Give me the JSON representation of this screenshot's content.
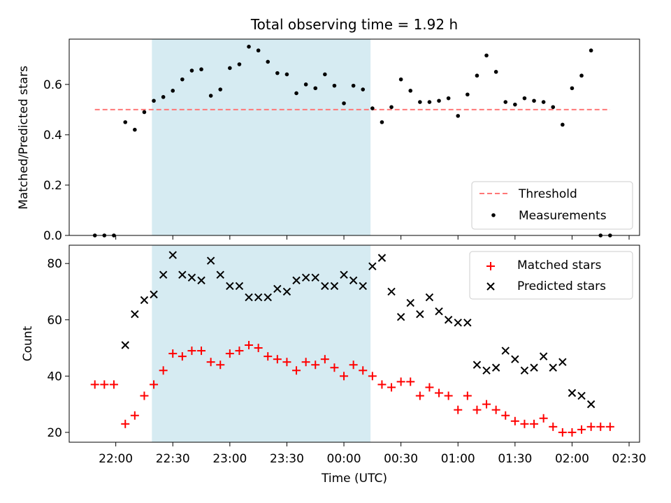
{
  "figure": {
    "title": "Total observing time = 1.92 h",
    "xlabel": "Time (UTC)",
    "xticks": [
      {
        "t": 0,
        "label": "22:00"
      },
      {
        "t": 30,
        "label": "22:30"
      },
      {
        "t": 60,
        "label": "23:00"
      },
      {
        "t": 90,
        "label": "23:30"
      },
      {
        "t": 120,
        "label": "00:00"
      },
      {
        "t": 150,
        "label": "00:30"
      },
      {
        "t": 180,
        "label": "01:00"
      },
      {
        "t": 210,
        "label": "01:30"
      },
      {
        "t": 240,
        "label": "02:00"
      },
      {
        "t": 270,
        "label": "02:30"
      }
    ],
    "xlim_minutes_after_2200": [
      -24.5,
      275.5
    ],
    "observing_window_minutes_after_2200": [
      19,
      134
    ],
    "colors": {
      "window": "#add8e6",
      "threshold": "#ff7777",
      "matched": "#ff0000",
      "predicted": "#000000",
      "measurement": "#000000"
    }
  },
  "chart_data": [
    {
      "type": "scatter",
      "ylabel": "Matched/Predicted stars",
      "ylim": [
        0,
        0.78
      ],
      "yticks": [
        0.0,
        0.2,
        0.4,
        0.6
      ],
      "ytick_labels": [
        "0.0",
        "0.2",
        "0.4",
        "0.6"
      ],
      "threshold": {
        "name": "Threshold",
        "value": 0.5,
        "x_range": [
          -11,
          260
        ]
      },
      "legend": {
        "location": "lower-right",
        "entries": [
          "Threshold",
          "Measurements"
        ]
      },
      "series": [
        {
          "name": "Measurements",
          "x": [
            -11,
            -6,
            -1,
            5,
            10,
            15,
            20,
            25,
            30,
            35,
            40,
            45,
            50,
            55,
            60,
            65,
            70,
            75,
            80,
            85,
            90,
            95,
            100,
            105,
            110,
            115,
            120,
            125,
            130,
            135,
            140,
            145,
            150,
            155,
            160,
            165,
            170,
            175,
            180,
            185,
            190,
            195,
            200,
            205,
            210,
            215,
            220,
            225,
            230,
            235,
            240,
            245,
            250,
            255,
            260
          ],
          "y": [
            0.0,
            0.0,
            0.0,
            0.45,
            0.42,
            0.49,
            0.535,
            0.55,
            0.575,
            0.62,
            0.655,
            0.66,
            0.555,
            0.58,
            0.665,
            0.68,
            0.75,
            0.735,
            0.69,
            0.645,
            0.64,
            0.565,
            0.6,
            0.585,
            0.64,
            0.595,
            0.525,
            0.595,
            0.58,
            0.505,
            0.45,
            0.51,
            0.62,
            0.575,
            0.53,
            0.53,
            0.535,
            0.545,
            0.475,
            0.56,
            0.635,
            0.715,
            0.65,
            0.53,
            0.52,
            0.545,
            0.535,
            0.53,
            0.51,
            0.44,
            0.585,
            0.635,
            0.735,
            0.0,
            0.0
          ]
        }
      ]
    },
    {
      "type": "scatter",
      "ylabel": "Count",
      "ylim": [
        16.5,
        86.5
      ],
      "yticks": [
        20,
        40,
        60,
        80
      ],
      "ytick_labels": [
        "20",
        "40",
        "60",
        "80"
      ],
      "legend": {
        "location": "top-right",
        "entries": [
          "Matched stars",
          "Predicted stars"
        ]
      },
      "series": [
        {
          "name": "Matched stars",
          "marker": "plus",
          "x": [
            -11,
            -6,
            -1,
            5,
            10,
            15,
            20,
            25,
            30,
            35,
            40,
            45,
            50,
            55,
            60,
            65,
            70,
            75,
            80,
            85,
            90,
            95,
            100,
            105,
            110,
            115,
            120,
            125,
            130,
            135,
            140,
            145,
            150,
            155,
            160,
            165,
            170,
            175,
            180,
            185,
            190,
            195,
            200,
            205,
            210,
            215,
            220,
            225,
            230,
            235,
            240,
            245,
            250,
            255,
            260
          ],
          "y": [
            37,
            37,
            37,
            23,
            26,
            33,
            37,
            42,
            48,
            47,
            49,
            49,
            45,
            44,
            48,
            49,
            51,
            50,
            47,
            46,
            45,
            42,
            45,
            44,
            46,
            43,
            40,
            44,
            42,
            40,
            37,
            36,
            38,
            38,
            33,
            36,
            34,
            33,
            28,
            33,
            28,
            30,
            28,
            26,
            24,
            23,
            23,
            25,
            22,
            20,
            20,
            21,
            22,
            22,
            22
          ]
        },
        {
          "name": "Predicted stars",
          "marker": "x",
          "x": [
            5,
            10,
            15,
            20,
            25,
            30,
            35,
            40,
            45,
            50,
            55,
            60,
            65,
            70,
            75,
            80,
            85,
            90,
            95,
            100,
            105,
            110,
            115,
            120,
            125,
            130,
            135,
            140,
            145,
            150,
            155,
            160,
            165,
            170,
            175,
            180,
            185,
            190,
            195,
            200,
            205,
            210,
            215,
            220,
            225,
            230,
            235,
            240,
            245,
            250
          ],
          "y": [
            51,
            62,
            67,
            69,
            76,
            83,
            76,
            75,
            74,
            81,
            76,
            72,
            72,
            68,
            68,
            68,
            71,
            70,
            74,
            75,
            75,
            72,
            72,
            76,
            74,
            72,
            79,
            82,
            70,
            61,
            66,
            62,
            68,
            63,
            60,
            59,
            59,
            44,
            42,
            43,
            49,
            46,
            42,
            43,
            47,
            43,
            45,
            34,
            33,
            30
          ]
        }
      ]
    }
  ]
}
